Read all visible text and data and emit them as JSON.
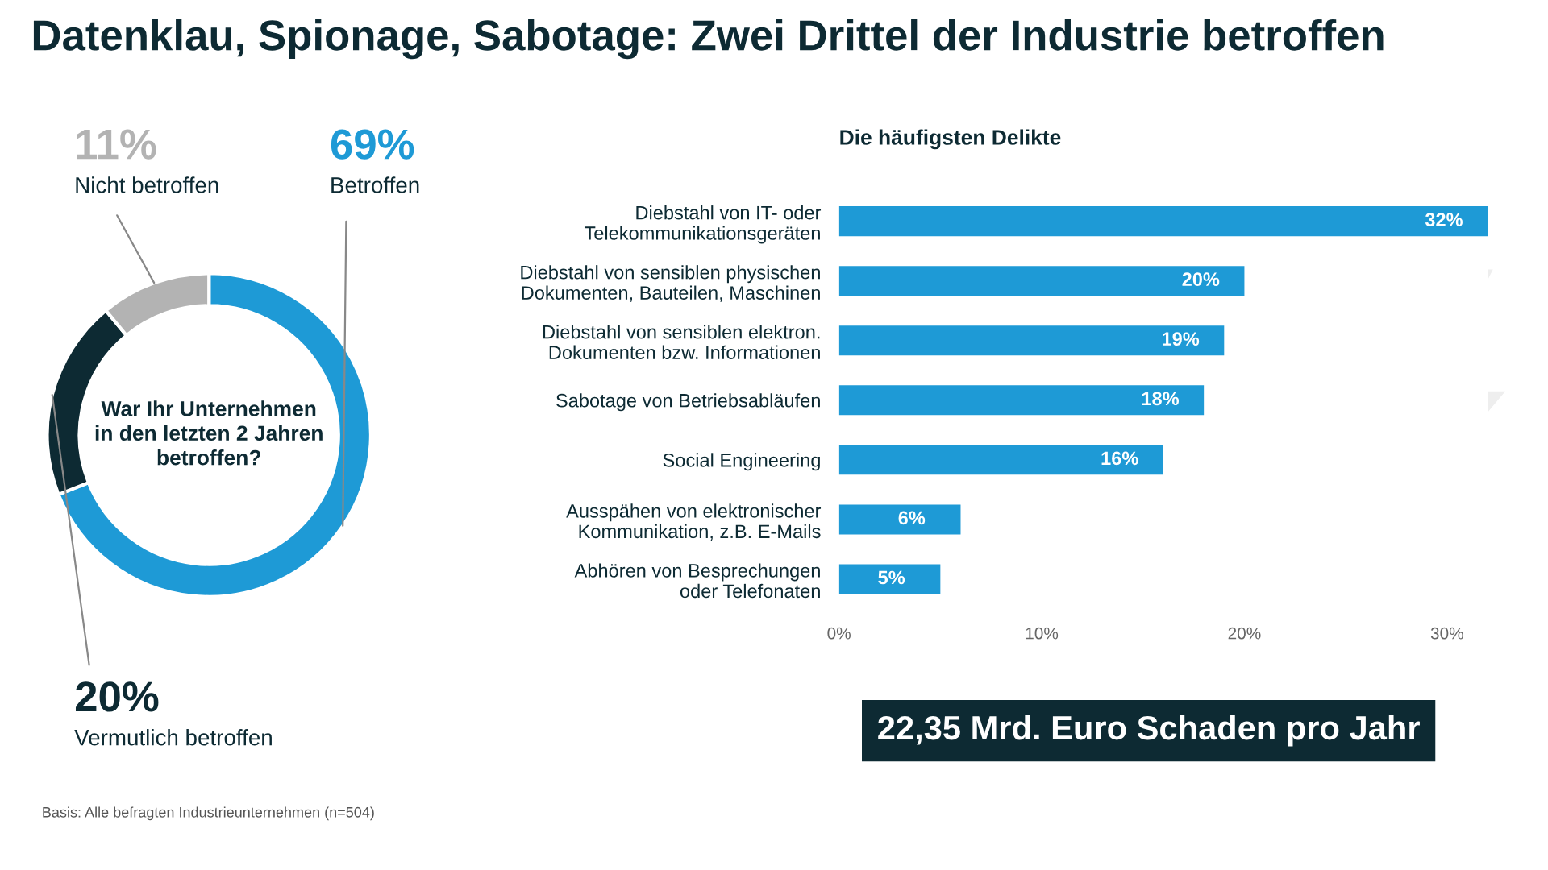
{
  "chart_data": [
    {
      "type": "donut",
      "title": "Datenklau, Spionage, Sabotage: Zwei Drittel der Industrie betroffen",
      "categories": [
        "Betroffen",
        "Vermutlich betroffen",
        "Nicht betroffen"
      ],
      "values": [
        69,
        20,
        11
      ],
      "colors": [
        "#1e9ad6",
        "#0d2a33",
        "#b3b3b3"
      ],
      "value_labels": [
        "69%",
        "20%",
        "11%"
      ],
      "annotations": [
        "War Ihr Unternehmen\nin den letzten 2 Jahren\nbetroffen?",
        "Basis: Alle befragten Industrieunternehmen (n=504)"
      ],
      "legend": false
    },
    {
      "type": "bar",
      "orientation": "horizontal",
      "title": "Die häufigsten Delikte",
      "categories": [
        "Diebstahl von IT- oder\nTelekommunikationsgeräten",
        "Diebstahl von sensiblen physischen\nDokumenten, Bauteilen, Maschinen",
        "Diebstahl von sensiblen elektron.\nDokumenten bzw. Informationen",
        "Sabotage von Betriebsabläufen",
        "Social Engineering",
        "Ausspähen von elektronischer\nKommunikation, z.B. E-Mails",
        "Abhören von Besprechungen\noder Telefonaten"
      ],
      "values": [
        32,
        20,
        19,
        18,
        16,
        6,
        5
      ],
      "color": "#1e9ad6",
      "value_labels": [
        "32%",
        "20%",
        "19%",
        "18%",
        "16%",
        "6%",
        "5%"
      ],
      "xlim": [
        0,
        32
      ],
      "xticks": [
        {
          "value": 0,
          "label": "0%"
        },
        {
          "value": 10,
          "label": "10%"
        },
        {
          "value": 20,
          "label": "20%"
        },
        {
          "value": 30,
          "label": "30%"
        }
      ],
      "grid": false,
      "legend": false,
      "annotations": [
        "22,35 Mrd. Euro Schaden pro Jahr"
      ]
    }
  ]
}
